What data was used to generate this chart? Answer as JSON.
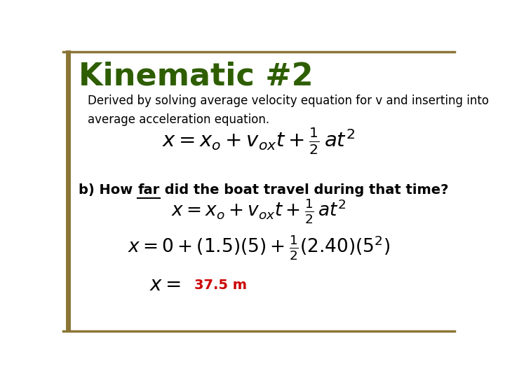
{
  "title": "Kinematic #2",
  "title_color": "#2E5E00",
  "title_fontsize": 32,
  "subtitle": "Derived by solving average velocity equation for v and inserting into\naverage acceleration equation.",
  "subtitle_color": "#000000",
  "subtitle_fontsize": 12,
  "bg_color": "#FFFFFF",
  "border_color": "#8B7536",
  "question_prefix": "b) How ",
  "question_underline": "far",
  "question_rest": " did the boat travel during that time?",
  "question_fontsize": 14,
  "answer_color": "#CC0000",
  "answer_text": "37.5 m",
  "answer_fontsize": 14
}
